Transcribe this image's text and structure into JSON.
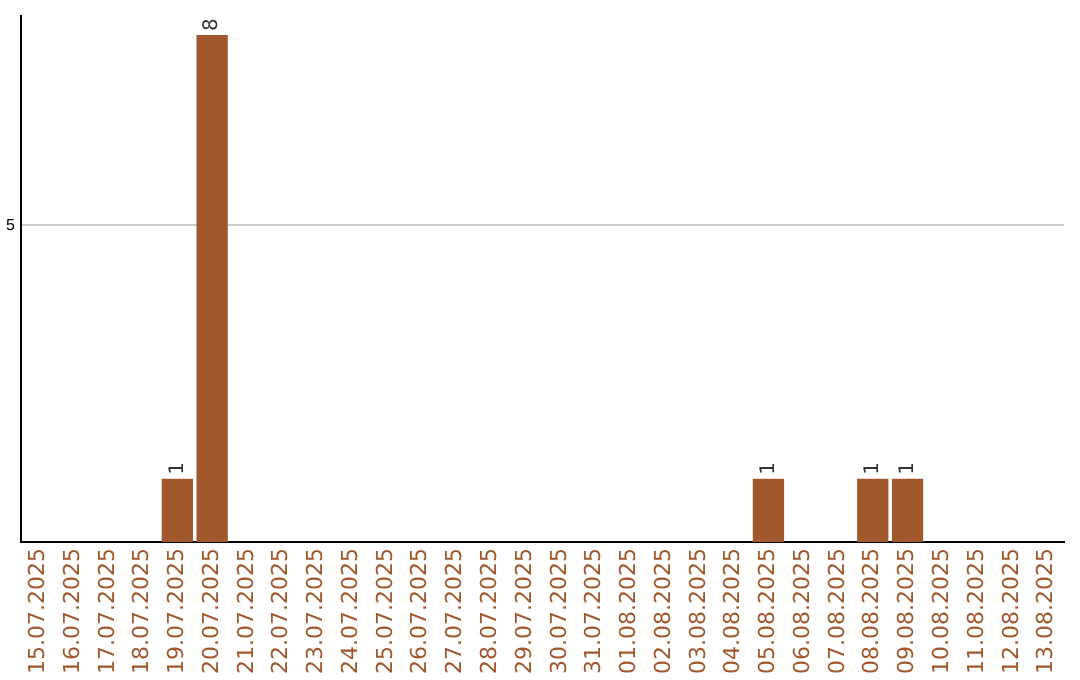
{
  "chart_data": {
    "type": "bar",
    "categories": [
      "15.07.2025",
      "16.07.2025",
      "17.07.2025",
      "18.07.2025",
      "19.07.2025",
      "20.07.2025",
      "21.07.2025",
      "22.07.2025",
      "23.07.2025",
      "24.07.2025",
      "25.07.2025",
      "26.07.2025",
      "27.07.2025",
      "28.07.2025",
      "29.07.2025",
      "30.07.2025",
      "31.07.2025",
      "01.08.2025",
      "02.08.2025",
      "03.08.2025",
      "04.08.2025",
      "05.08.2025",
      "06.08.2025",
      "07.08.2025",
      "08.08.2025",
      "09.08.2025",
      "10.08.2025",
      "11.08.2025",
      "12.08.2025",
      "13.08.2025"
    ],
    "values": [
      0,
      0,
      0,
      0,
      1,
      8,
      0,
      0,
      0,
      0,
      0,
      0,
      0,
      0,
      0,
      0,
      0,
      0,
      0,
      0,
      0,
      1,
      0,
      0,
      1,
      1,
      0,
      0,
      0,
      0
    ],
    "value_labels": [
      null,
      null,
      null,
      null,
      "1",
      "8",
      null,
      null,
      null,
      null,
      null,
      null,
      null,
      null,
      null,
      null,
      null,
      null,
      null,
      null,
      null,
      "1",
      null,
      null,
      "1",
      "1",
      null,
      null,
      null,
      null
    ],
    "color": "#a0582c",
    "ylim": [
      0,
      8.3
    ],
    "yticks": [
      5
    ],
    "grid": "y",
    "legend": false
  }
}
